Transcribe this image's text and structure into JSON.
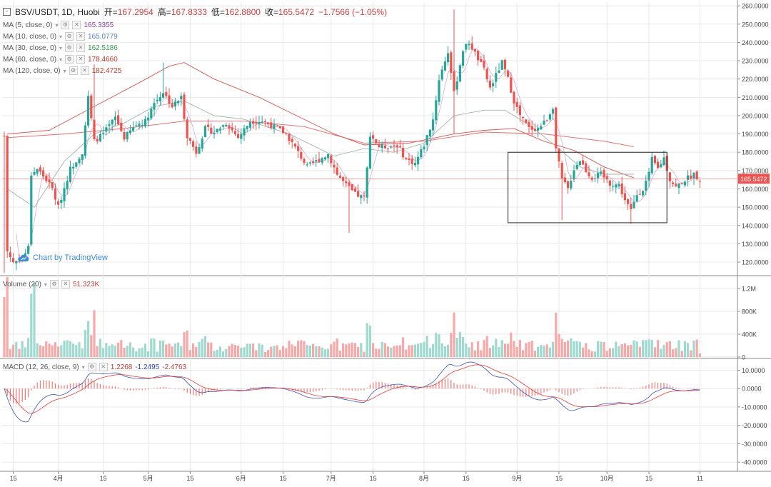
{
  "header": {
    "symbol": "BSV/USDT, 1D, Huobi",
    "open_label": "开=",
    "open": "167.2954",
    "high_label": "高=",
    "high": "167.8333",
    "low_label": "低=",
    "low": "162.8800",
    "close_label": "收=",
    "close": "165.5472",
    "change": "−1.7566 (−1.05%)"
  },
  "indicators": [
    {
      "label": "MA (5, close, 0)",
      "value": "165.3355",
      "color": "#8e44ad"
    },
    {
      "label": "MA (10, close, 0)",
      "value": "165.0779",
      "color": "#5a7fc4"
    },
    {
      "label": "MA (30, close, 0)",
      "value": "162.5186",
      "color": "#2e9e4f"
    },
    {
      "label": "MA (60, close, 0)",
      "value": "178.4660",
      "color": "#c0392b"
    },
    {
      "label": "MA (120, close, 0)",
      "value": "182.4725",
      "color": "#c0392b"
    }
  ],
  "volume_legend": {
    "label": "Volume (20)",
    "value": "51.323K"
  },
  "macd_legend": {
    "label": "MACD (12, 26, close, 9)",
    "v1": "1.2268",
    "v2": "-1.2495",
    "v3": "-2.4763"
  },
  "watermark": "Chart by TradingView",
  "last_price_tag": "165.5472",
  "colors": {
    "up": "#26a69a",
    "down": "#ef5350",
    "grid": "#e8e8e8"
  },
  "chart_data": {
    "type": "candlestick",
    "price_axis": {
      "ticks": [
        "260.0000",
        "250.0000",
        "240.0000",
        "230.0000",
        "220.0000",
        "210.0000",
        "200.0000",
        "190.0000",
        "180.0000",
        "170.0000",
        "160.0000",
        "150.0000",
        "140.0000",
        "130.0000",
        "120.0000"
      ],
      "values": [
        260,
        250,
        240,
        230,
        220,
        210,
        200,
        190,
        180,
        170,
        160,
        150,
        140,
        130,
        120
      ],
      "range": [
        113,
        262
      ]
    },
    "volume_axis": {
      "ticks": [
        "1.2M",
        "800K",
        "400K",
        "0"
      ],
      "values": [
        1200000,
        800000,
        400000,
        0
      ],
      "range": [
        0,
        1400000
      ]
    },
    "macd_axis": {
      "ticks": [
        "10.0000",
        "0.0000",
        "-10.0000",
        "-20.0000",
        "-30.0000",
        "-40.0000"
      ],
      "values": [
        10,
        0,
        -10,
        -20,
        -30,
        -40
      ],
      "range": [
        -45,
        16
      ]
    },
    "time_axis": {
      "labels": [
        "15",
        "4月",
        "15",
        "5月",
        "15",
        "6月",
        "15",
        "7月",
        "15",
        "8月",
        "15",
        "9月",
        "15",
        "10月",
        "15",
        "11"
      ],
      "index": [
        3,
        18,
        33,
        48,
        62,
        79,
        93,
        109,
        123,
        140,
        154,
        171,
        185,
        201,
        215,
        232
      ]
    },
    "ma_keypoints": {
      "ma30": [
        [
          1,
          160
        ],
        [
          10,
          150
        ],
        [
          20,
          175
        ],
        [
          30,
          190
        ],
        [
          40,
          196
        ],
        [
          50,
          205
        ],
        [
          60,
          208
        ],
        [
          70,
          200
        ],
        [
          80,
          198
        ],
        [
          95,
          190
        ],
        [
          110,
          178
        ],
        [
          120,
          182
        ],
        [
          130,
          180
        ],
        [
          140,
          185
        ],
        [
          150,
          200
        ],
        [
          160,
          203
        ],
        [
          167,
          203
        ],
        [
          175,
          195
        ],
        [
          185,
          182
        ],
        [
          192,
          172
        ],
        [
          200,
          168
        ],
        [
          210,
          168
        ]
      ],
      "ma60": [
        [
          1,
          190
        ],
        [
          15,
          192
        ],
        [
          30,
          205
        ],
        [
          45,
          218
        ],
        [
          55,
          227
        ],
        [
          60,
          229
        ],
        [
          70,
          220
        ],
        [
          85,
          210
        ],
        [
          100,
          198
        ],
        [
          110,
          190
        ],
        [
          120,
          184
        ],
        [
          135,
          185
        ],
        [
          150,
          190
        ],
        [
          160,
          192
        ],
        [
          170,
          193
        ],
        [
          180,
          186
        ],
        [
          190,
          181
        ],
        [
          200,
          172
        ],
        [
          210,
          166
        ]
      ],
      "ma120": [
        [
          1,
          188
        ],
        [
          20,
          190
        ],
        [
          40,
          193
        ],
        [
          60,
          197
        ],
        [
          80,
          197
        ],
        [
          100,
          194
        ],
        [
          120,
          185
        ],
        [
          140,
          186
        ],
        [
          160,
          191
        ],
        [
          180,
          190
        ],
        [
          200,
          186
        ],
        [
          210,
          183
        ]
      ]
    },
    "annotation": {
      "type": "rectangle",
      "x_index": [
        168,
        221
      ],
      "price": [
        141.5,
        180
      ]
    },
    "last_price": 165.5472
  }
}
